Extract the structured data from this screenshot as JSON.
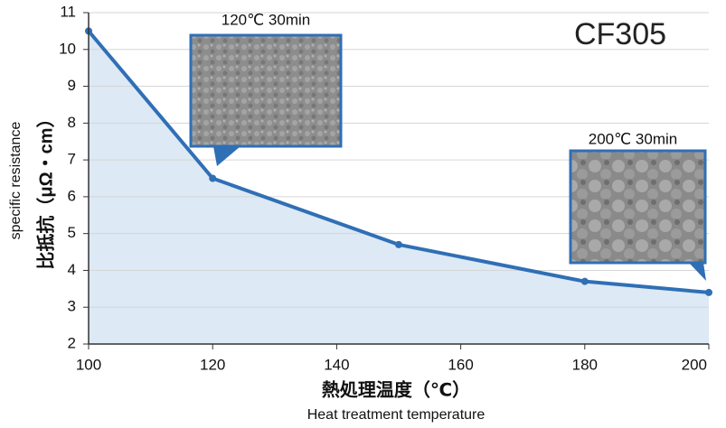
{
  "chart_data": {
    "type": "line",
    "title": "CF305",
    "x_label": "熱処理温度（℃）",
    "x_label_en": "Heat treatment temperature",
    "y_label": "比抵抗（μΩ・cm）",
    "y_label_en": "specific resistance",
    "x": [
      100,
      120,
      150,
      180,
      200
    ],
    "series": [
      {
        "name": "CF305",
        "color": "#2f6fb5",
        "values": [
          10.5,
          6.5,
          4.7,
          3.7,
          3.4
        ]
      }
    ],
    "area_color": "#dde9f4",
    "xlim": [
      100,
      200
    ],
    "xticks": [
      100,
      120,
      140,
      160,
      180,
      200
    ],
    "ylim": [
      2,
      11
    ],
    "yticks": [
      2,
      3,
      4,
      5,
      6,
      7,
      8,
      9,
      10,
      11
    ],
    "grid": true,
    "annotations": [
      "120℃ 30min",
      "200℃ 30min"
    ]
  }
}
